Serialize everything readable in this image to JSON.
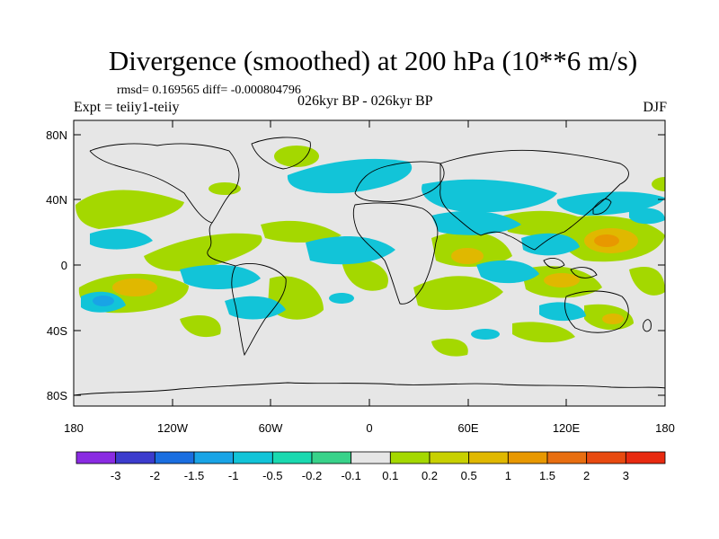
{
  "header": {
    "title": "Divergence (smoothed) at 200 hPa (10**6 m/s)",
    "stats": "rmsd= 0.169565 diff= -0.000804796",
    "experiment": "Expt = teiiy1-teiiy",
    "period": "026kyr BP - 026kyr BP",
    "season": "DJF"
  },
  "axes": {
    "lat_ticks": [
      "80N",
      "40N",
      "0",
      "40S",
      "80S"
    ],
    "lon_ticks": [
      "180",
      "120W",
      "60W",
      "0",
      "60E",
      "120E",
      "180"
    ]
  },
  "colorbar": {
    "labels": [
      "-3",
      "-2",
      "-1.5",
      "-1",
      "-0.5",
      "-0.2",
      "-0.1",
      "0.1",
      "0.2",
      "0.5",
      "1",
      "1.5",
      "2",
      "3"
    ],
    "colors": [
      "#8a2be2",
      "#3c3ccd",
      "#1a6ee0",
      "#19a4e6",
      "#12c4d8",
      "#1ad9b0",
      "#38d28a",
      "#e6e6e6",
      "#a4d800",
      "#c8d000",
      "#e0b800",
      "#e89800",
      "#e86e10",
      "#e84a10",
      "#e82a10"
    ]
  },
  "colors": {
    "land_background": "#e6e6e6",
    "positive_light": "#a4d800",
    "positive_mid": "#e0b800",
    "positive_strong": "#e89800",
    "negative_light": "#12c4d8",
    "negative_mid": "#19a4e6"
  }
}
